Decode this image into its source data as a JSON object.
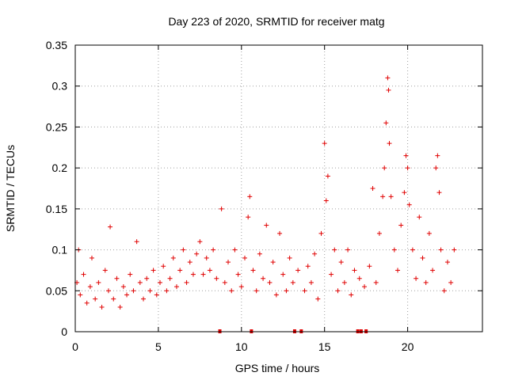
{
  "chart_data": {
    "type": "scatter",
    "title": "Day 223 of 2020, SRMTID for receiver matg",
    "xlabel": "GPS time / hours",
    "ylabel": "SRMTID / TECUs",
    "xlim": [
      0,
      24.5
    ],
    "ylim": [
      0,
      0.35
    ],
    "xticks": [
      0,
      5,
      10,
      15,
      20
    ],
    "xtick_labels": [
      "0",
      "5",
      "10",
      "15",
      "20"
    ],
    "yticks": [
      0,
      0.05,
      0.1,
      0.15,
      0.2,
      0.25,
      0.3,
      0.35
    ],
    "ytick_labels": [
      "0",
      "0.05",
      "0.1",
      "0.15",
      "0.2",
      "0.25",
      "0.3",
      "0.35"
    ],
    "grid": true,
    "marker": "+",
    "color": "#e00000",
    "gap_marker_hours": [
      8.7,
      10.6,
      13.2,
      13.6,
      17.0,
      17.2,
      17.5
    ],
    "series": [
      {
        "name": "SRMTID",
        "points": [
          [
            0.1,
            0.06
          ],
          [
            0.2,
            0.1
          ],
          [
            0.3,
            0.045
          ],
          [
            0.5,
            0.07
          ],
          [
            0.7,
            0.035
          ],
          [
            0.9,
            0.055
          ],
          [
            1.0,
            0.09
          ],
          [
            1.2,
            0.04
          ],
          [
            1.4,
            0.06
          ],
          [
            1.6,
            0.03
          ],
          [
            1.8,
            0.075
          ],
          [
            2.0,
            0.05
          ],
          [
            2.1,
            0.128
          ],
          [
            2.3,
            0.04
          ],
          [
            2.5,
            0.065
          ],
          [
            2.7,
            0.03
          ],
          [
            2.9,
            0.055
          ],
          [
            3.1,
            0.045
          ],
          [
            3.3,
            0.07
          ],
          [
            3.5,
            0.05
          ],
          [
            3.7,
            0.11
          ],
          [
            3.9,
            0.06
          ],
          [
            4.1,
            0.04
          ],
          [
            4.3,
            0.065
          ],
          [
            4.5,
            0.05
          ],
          [
            4.7,
            0.075
          ],
          [
            4.9,
            0.045
          ],
          [
            5.1,
            0.06
          ],
          [
            5.3,
            0.08
          ],
          [
            5.5,
            0.05
          ],
          [
            5.7,
            0.065
          ],
          [
            5.9,
            0.09
          ],
          [
            6.1,
            0.055
          ],
          [
            6.3,
            0.075
          ],
          [
            6.5,
            0.1
          ],
          [
            6.7,
            0.06
          ],
          [
            6.9,
            0.085
          ],
          [
            7.1,
            0.07
          ],
          [
            7.3,
            0.095
          ],
          [
            7.5,
            0.11
          ],
          [
            7.7,
            0.07
          ],
          [
            7.9,
            0.09
          ],
          [
            8.1,
            0.075
          ],
          [
            8.3,
            0.1
          ],
          [
            8.5,
            0.065
          ],
          [
            8.8,
            0.15
          ],
          [
            9.0,
            0.06
          ],
          [
            9.2,
            0.085
          ],
          [
            9.4,
            0.05
          ],
          [
            9.6,
            0.1
          ],
          [
            9.8,
            0.07
          ],
          [
            10.0,
            0.055
          ],
          [
            10.2,
            0.09
          ],
          [
            10.4,
            0.14
          ],
          [
            10.5,
            0.165
          ],
          [
            10.7,
            0.075
          ],
          [
            10.9,
            0.05
          ],
          [
            11.1,
            0.095
          ],
          [
            11.3,
            0.065
          ],
          [
            11.5,
            0.13
          ],
          [
            11.7,
            0.06
          ],
          [
            11.9,
            0.085
          ],
          [
            12.1,
            0.045
          ],
          [
            12.3,
            0.12
          ],
          [
            12.5,
            0.07
          ],
          [
            12.7,
            0.05
          ],
          [
            12.9,
            0.09
          ],
          [
            13.1,
            0.06
          ],
          [
            13.4,
            0.075
          ],
          [
            13.8,
            0.05
          ],
          [
            14.0,
            0.08
          ],
          [
            14.2,
            0.06
          ],
          [
            14.4,
            0.095
          ],
          [
            14.6,
            0.04
          ],
          [
            14.8,
            0.12
          ],
          [
            15.0,
            0.23
          ],
          [
            15.1,
            0.16
          ],
          [
            15.2,
            0.19
          ],
          [
            15.4,
            0.07
          ],
          [
            15.6,
            0.1
          ],
          [
            15.8,
            0.05
          ],
          [
            16.0,
            0.085
          ],
          [
            16.2,
            0.06
          ],
          [
            16.4,
            0.1
          ],
          [
            16.6,
            0.045
          ],
          [
            16.8,
            0.075
          ],
          [
            17.1,
            0.065
          ],
          [
            17.4,
            0.055
          ],
          [
            17.7,
            0.08
          ],
          [
            17.9,
            0.175
          ],
          [
            18.1,
            0.06
          ],
          [
            18.3,
            0.12
          ],
          [
            18.5,
            0.165
          ],
          [
            18.6,
            0.2
          ],
          [
            18.7,
            0.255
          ],
          [
            18.8,
            0.31
          ],
          [
            18.85,
            0.295
          ],
          [
            18.9,
            0.23
          ],
          [
            19.0,
            0.165
          ],
          [
            19.2,
            0.1
          ],
          [
            19.4,
            0.075
          ],
          [
            19.6,
            0.13
          ],
          [
            19.8,
            0.17
          ],
          [
            19.9,
            0.215
          ],
          [
            20.0,
            0.2
          ],
          [
            20.1,
            0.155
          ],
          [
            20.3,
            0.1
          ],
          [
            20.5,
            0.065
          ],
          [
            20.7,
            0.14
          ],
          [
            20.9,
            0.09
          ],
          [
            21.1,
            0.06
          ],
          [
            21.3,
            0.12
          ],
          [
            21.5,
            0.075
          ],
          [
            21.7,
            0.2
          ],
          [
            21.8,
            0.215
          ],
          [
            21.9,
            0.17
          ],
          [
            22.0,
            0.1
          ],
          [
            22.2,
            0.05
          ],
          [
            22.4,
            0.085
          ],
          [
            22.6,
            0.06
          ],
          [
            22.8,
            0.1
          ]
        ]
      }
    ]
  }
}
